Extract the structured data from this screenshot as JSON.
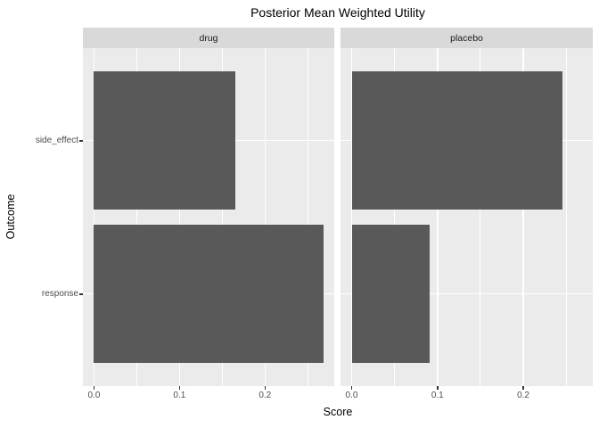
{
  "colors": {
    "bar": "#595959",
    "panel_bg": "#ebebeb",
    "strip_bg": "#d9d9d9",
    "gridline": "#ffffff",
    "axis_tick": "#333333",
    "tick_label": "#4d4d4d",
    "title_text": "#000000"
  },
  "chart_data": {
    "type": "bar",
    "orientation": "horizontal",
    "title": "Posterior Mean Weighted Utility",
    "xlabel": "Score",
    "ylabel": "Outcome",
    "categories": [
      "side_effect",
      "response"
    ],
    "facets": [
      {
        "label": "drug",
        "values": [
          0.165,
          0.268
        ]
      },
      {
        "label": "placebo",
        "values": [
          0.246,
          0.091
        ]
      }
    ],
    "x_ticks": [
      0,
      0.1,
      0.2
    ],
    "x_tick_labels": [
      "0.0",
      "0.1",
      "0.2"
    ],
    "x_minor_ticks": [
      0.05,
      0.15,
      0.25
    ],
    "xlim": [
      -0.013,
      0.281
    ],
    "grid": true,
    "legend": "none"
  }
}
